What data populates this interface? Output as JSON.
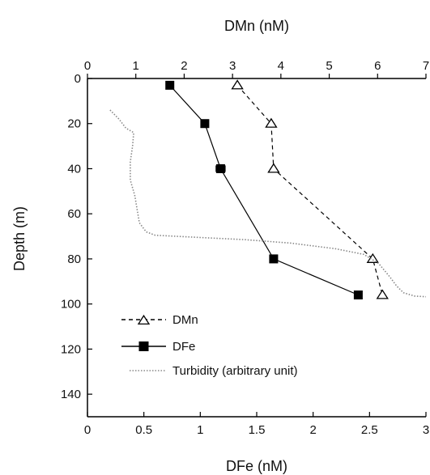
{
  "chart_data": {
    "type": "line",
    "top_axis": {
      "label": "DMn (nM)",
      "range": [
        0,
        7
      ],
      "ticks": [
        0,
        1,
        2,
        3,
        4,
        5,
        6,
        7
      ],
      "tick_labels": [
        "0",
        "1",
        "2",
        "3",
        "4",
        "5",
        "6",
        "7"
      ]
    },
    "bottom_axis": {
      "label": "DFe (nM)",
      "range": [
        0,
        3
      ],
      "ticks": [
        0,
        0.5,
        1,
        1.5,
        2,
        2.5,
        3
      ],
      "tick_labels": [
        "0",
        "0.5",
        "1",
        "1.5",
        "2",
        "2.5",
        "3"
      ]
    },
    "y_axis": {
      "label": "Depth (m)",
      "range": [
        0,
        150
      ],
      "inverted": true,
      "ticks": [
        0,
        20,
        40,
        60,
        80,
        100,
        120,
        140
      ],
      "tick_labels": [
        "0",
        "20",
        "40",
        "60",
        "80",
        "100",
        "120",
        "140"
      ]
    },
    "grid": false,
    "legend_position": "lower-left",
    "series": [
      {
        "name": "DMn",
        "axis": "top",
        "style": "dashed",
        "marker": "open-triangle",
        "color": "#000000",
        "points": [
          {
            "x": 3.1,
            "depth": 3
          },
          {
            "x": 3.8,
            "depth": 20
          },
          {
            "x": 3.85,
            "depth": 40
          },
          {
            "x": 5.9,
            "depth": 80
          },
          {
            "x": 6.1,
            "depth": 96
          }
        ]
      },
      {
        "name": "DFe",
        "axis": "bottom",
        "style": "solid",
        "marker": "filled-square",
        "color": "#000000",
        "points": [
          {
            "x": 0.73,
            "depth": 3
          },
          {
            "x": 1.04,
            "depth": 20
          },
          {
            "x": 1.18,
            "depth": 40,
            "xerr": 0.04
          },
          {
            "x": 1.65,
            "depth": 80
          },
          {
            "x": 2.4,
            "depth": 96
          }
        ]
      },
      {
        "name": "Turbidity (arbitrary unit)",
        "axis": "bottom",
        "style": "dotted",
        "marker": "none",
        "color": "#888888",
        "points": [
          {
            "x": 0.2,
            "depth": 14
          },
          {
            "x": 0.28,
            "depth": 18
          },
          {
            "x": 0.34,
            "depth": 22
          },
          {
            "x": 0.41,
            "depth": 24
          },
          {
            "x": 0.4,
            "depth": 30
          },
          {
            "x": 0.38,
            "depth": 37
          },
          {
            "x": 0.38,
            "depth": 45
          },
          {
            "x": 0.42,
            "depth": 52
          },
          {
            "x": 0.44,
            "depth": 58
          },
          {
            "x": 0.46,
            "depth": 64
          },
          {
            "x": 0.52,
            "depth": 68
          },
          {
            "x": 0.6,
            "depth": 69.5
          },
          {
            "x": 1.0,
            "depth": 70.5
          },
          {
            "x": 1.4,
            "depth": 71.5
          },
          {
            "x": 1.8,
            "depth": 73
          },
          {
            "x": 2.2,
            "depth": 75.5
          },
          {
            "x": 2.45,
            "depth": 78
          },
          {
            "x": 2.58,
            "depth": 82
          },
          {
            "x": 2.68,
            "depth": 88
          },
          {
            "x": 2.74,
            "depth": 92
          },
          {
            "x": 2.8,
            "depth": 95
          },
          {
            "x": 2.9,
            "depth": 96.5
          },
          {
            "x": 3.0,
            "depth": 96.8
          }
        ]
      }
    ]
  }
}
